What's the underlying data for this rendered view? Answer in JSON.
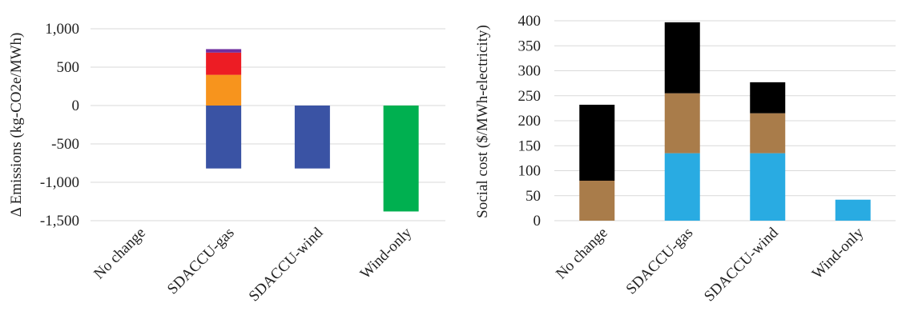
{
  "chart_data": [
    {
      "type": "bar",
      "stacked": true,
      "title": "",
      "xlabel": "",
      "ylabel": "Δ Emissions (kg-CO2e/MWh)",
      "ylim": [
        -1500,
        1000
      ],
      "yticks": [
        1000,
        500,
        0,
        -500,
        -1000,
        -1500
      ],
      "ytick_labels": [
        "1,000",
        "500",
        "0",
        "-500",
        "-1,000",
        "-1,500"
      ],
      "categories": [
        "No change",
        "SDACCU-gas",
        "SDACCU-wind",
        "Wind-only"
      ],
      "grid": true,
      "legend": "none",
      "series": [
        {
          "color": "#3a53a4",
          "values": [
            0,
            -820,
            -820,
            0
          ]
        },
        {
          "color": "#00b050",
          "values": [
            0,
            0,
            0,
            -1380
          ]
        },
        {
          "color": "#f7941d",
          "values": [
            0,
            400,
            0,
            0
          ]
        },
        {
          "color": "#ed1c24",
          "values": [
            0,
            290,
            0,
            0
          ]
        },
        {
          "color": "#7030a0",
          "values": [
            0,
            45,
            0,
            0
          ]
        }
      ]
    },
    {
      "type": "bar",
      "stacked": true,
      "title": "",
      "xlabel": "",
      "ylabel": "Social cost ($/MWh-electricity)",
      "ylim": [
        0,
        400
      ],
      "yticks": [
        400,
        350,
        300,
        250,
        200,
        150,
        100,
        50,
        0
      ],
      "ytick_labels": [
        "400",
        "350",
        "300",
        "250",
        "200",
        "150",
        "100",
        "50",
        "0"
      ],
      "categories": [
        "No change",
        "SDACCU-gas",
        "SDACCU-wind",
        "Wind-only"
      ],
      "grid": true,
      "legend": "none",
      "series": [
        {
          "color": "#29abe2",
          "values": [
            0,
            135,
            135,
            42
          ]
        },
        {
          "color": "#a97c4a",
          "values": [
            80,
            120,
            80,
            0
          ]
        },
        {
          "color": "#000000",
          "values": [
            152,
            142,
            62,
            0
          ]
        }
      ]
    }
  ]
}
